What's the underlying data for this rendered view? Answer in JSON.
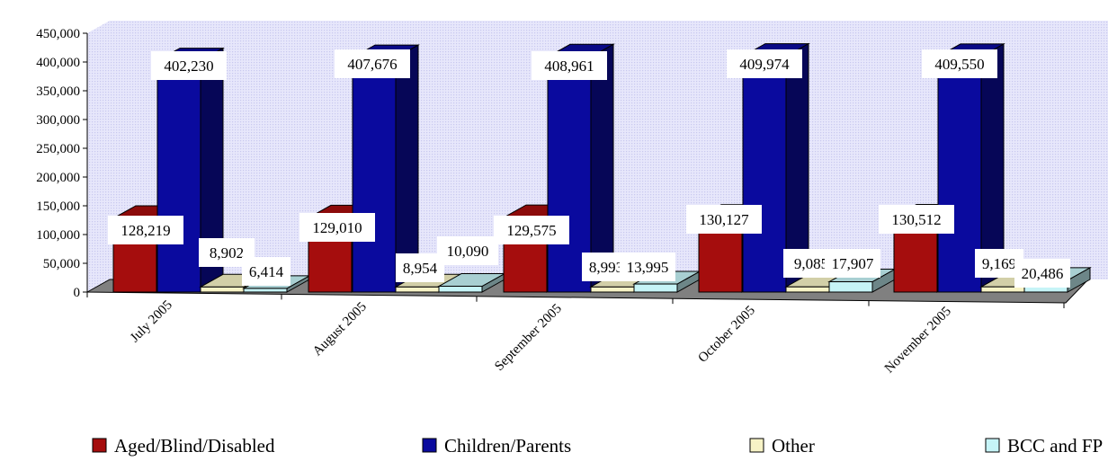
{
  "chart_data": {
    "type": "bar",
    "title": "",
    "xlabel": "",
    "ylabel": "",
    "ylim": [
      0,
      450000
    ],
    "yticks": [
      "0",
      "50,000",
      "100,000",
      "150,000",
      "200,000",
      "250,000",
      "300,000",
      "350,000",
      "400,000",
      "450,000"
    ],
    "grid": false,
    "legend_position": "bottom",
    "categories": [
      "July 2005",
      "August 2005",
      "September 2005",
      "October 2005",
      "November 2005"
    ],
    "series": [
      {
        "name": "Aged/Blind/Disabled",
        "color": "#a50d0d",
        "values": [
          128219,
          129010,
          129575,
          130127,
          130512
        ],
        "labels": [
          "128,219",
          "129,010",
          "129,575",
          "130,127",
          "130,512"
        ]
      },
      {
        "name": "Children/Parents",
        "color": "#0a0a9e",
        "values": [
          402230,
          407676,
          408961,
          409974,
          409550
        ],
        "labels": [
          "402,230",
          "407,676",
          "408,961",
          "409,974",
          "409,550"
        ]
      },
      {
        "name": "Other",
        "color": "#f7f3c6",
        "values": [
          8902,
          8954,
          8993,
          9085,
          9169
        ],
        "labels": [
          "8,902",
          "8,954",
          "8,993",
          "9,085",
          "9,169"
        ]
      },
      {
        "name": "BCC and FP",
        "color": "#c6f4f7",
        "values": [
          6414,
          10090,
          13995,
          17907,
          20486
        ],
        "labels": [
          "6,414",
          "10,090",
          "13,995",
          "17,907",
          "20,486"
        ]
      }
    ]
  }
}
